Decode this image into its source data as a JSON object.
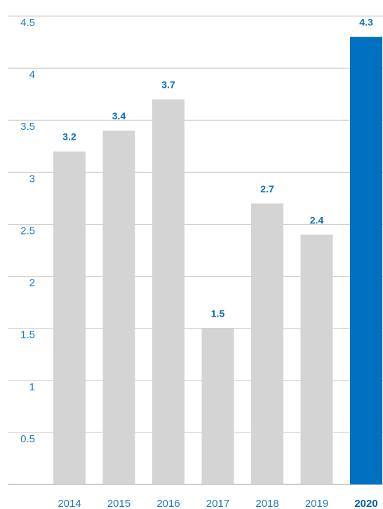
{
  "chart_data": {
    "type": "bar",
    "categories": [
      "2014",
      "2015",
      "2016",
      "2017",
      "2018",
      "2019",
      "2020"
    ],
    "values": [
      3.2,
      3.4,
      3.7,
      1.5,
      2.7,
      2.4,
      4.3
    ],
    "data_labels": [
      "3.2",
      "3.4",
      "3.7",
      "1.5",
      "2.7",
      "2.4",
      "4.3"
    ],
    "y_ticks": [
      "0.5",
      "1",
      "1.5",
      "2",
      "2.5",
      "3",
      "3.5",
      "4",
      "4.5"
    ],
    "y_tick_values": [
      0.5,
      1,
      1.5,
      2,
      2.5,
      3,
      3.5,
      4,
      4.5
    ],
    "ylim": [
      0,
      4.5
    ],
    "grid": true,
    "highlight_category": "2020",
    "colors": {
      "default_bar": "#d4d4d4",
      "highlight_bar": "#0070c0",
      "tick_text": "#1f79c0",
      "data_label": "#0b6fbb"
    }
  }
}
